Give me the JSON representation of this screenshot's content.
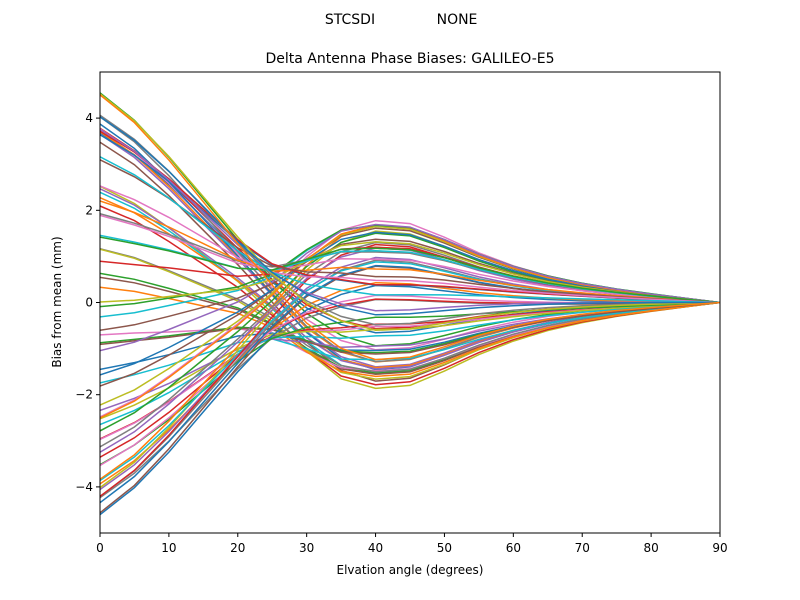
{
  "chart_data": {
    "type": "line",
    "suptitle_left": "STCSDI",
    "suptitle_right": "NONE",
    "title": "Delta Antenna Phase Biases: GALILEO-E5",
    "xlabel": "Elvation angle (degrees)",
    "ylabel": "Bias from mean (mm)",
    "xlim": [
      0,
      90
    ],
    "ylim": [
      -5,
      5
    ],
    "xticks": [
      "0",
      "10",
      "20",
      "30",
      "40",
      "50",
      "60",
      "70",
      "80",
      "90"
    ],
    "yticks": [
      "−4",
      "−2",
      "0",
      "2",
      "4"
    ],
    "ytick_values": [
      -4,
      -2,
      0,
      2,
      4
    ],
    "xtick_values": [
      0,
      10,
      20,
      30,
      40,
      50,
      60,
      70,
      80,
      90
    ],
    "grid": false,
    "x": [
      0,
      5,
      10,
      15,
      20,
      25,
      30,
      35,
      40,
      45,
      50,
      55,
      60,
      65,
      70,
      75,
      80,
      85,
      90
    ],
    "series_count": 72,
    "palette": [
      "#1f77b4",
      "#ff7f0e",
      "#2ca02c",
      "#d62728",
      "#9467bd",
      "#8c564b",
      "#e377c2",
      "#7f7f7f",
      "#bcbd22",
      "#17becf"
    ],
    "model": {
      "description": "Each series s(e) = A(e)*cos(phi) + B(e)*sin(phi); amplitude curves in mm sampled at x",
      "A": [
        4.6,
        4.0,
        3.2,
        2.3,
        1.4,
        0.55,
        -0.15,
        -0.6,
        -0.82,
        -0.78,
        -0.62,
        -0.45,
        -0.32,
        -0.22,
        -0.15,
        -0.1,
        -0.06,
        -0.03,
        0.0
      ],
      "B": [
        0.0,
        -0.05,
        -0.15,
        -0.25,
        -0.35,
        -0.6,
        -1.1,
        -1.5,
        -1.6,
        -1.55,
        -1.3,
        -1.0,
        -0.75,
        -0.55,
        -0.4,
        -0.28,
        -0.18,
        -0.09,
        0.0
      ]
    }
  }
}
